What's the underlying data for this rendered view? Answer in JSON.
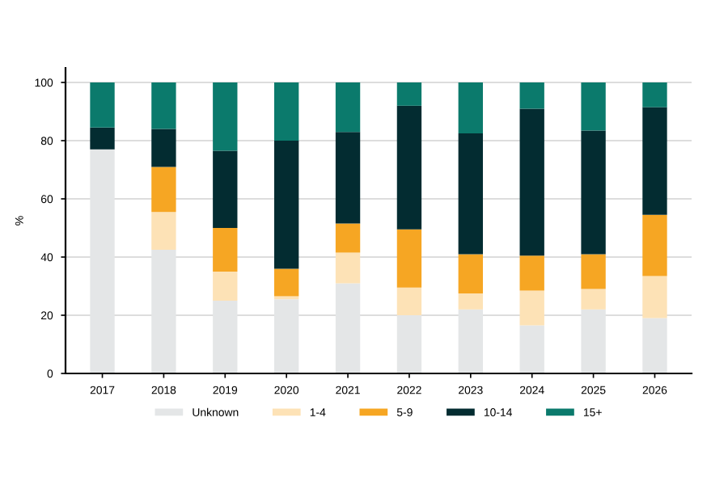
{
  "chart_data": {
    "type": "bar",
    "stacked": true,
    "ylabel": "%",
    "categories": [
      "2017",
      "2018",
      "2019",
      "2020",
      "2021",
      "2022",
      "2023",
      "2024",
      "2025",
      "2026"
    ],
    "series": [
      {
        "name": "Unknown",
        "color": "#e4e6e7",
        "values": [
          77,
          42.5,
          25,
          25.5,
          31,
          20,
          22,
          16.5,
          22,
          19
        ]
      },
      {
        "name": "1-4",
        "color": "#fde2b6",
        "values": [
          0,
          13,
          10,
          1,
          10.5,
          9.5,
          5.5,
          12,
          7,
          14.5
        ]
      },
      {
        "name": "5-9",
        "color": "#f6a623",
        "values": [
          0,
          15.5,
          15,
          9.5,
          10,
          20,
          13.5,
          12,
          12,
          21
        ]
      },
      {
        "name": "10-14",
        "color": "#032c31",
        "values": [
          7.5,
          13,
          26.5,
          44,
          31.5,
          42.5,
          41.5,
          50.5,
          42.5,
          37
        ]
      },
      {
        "name": "15+",
        "color": "#0b7a6c",
        "values": [
          15.5,
          16,
          23.5,
          20,
          17,
          8,
          17.5,
          9,
          16.5,
          8.5
        ]
      }
    ],
    "ylim": [
      0,
      105
    ],
    "yticks": [
      0,
      20,
      40,
      60,
      80,
      100
    ],
    "grid": "y",
    "legend": "bottom"
  }
}
